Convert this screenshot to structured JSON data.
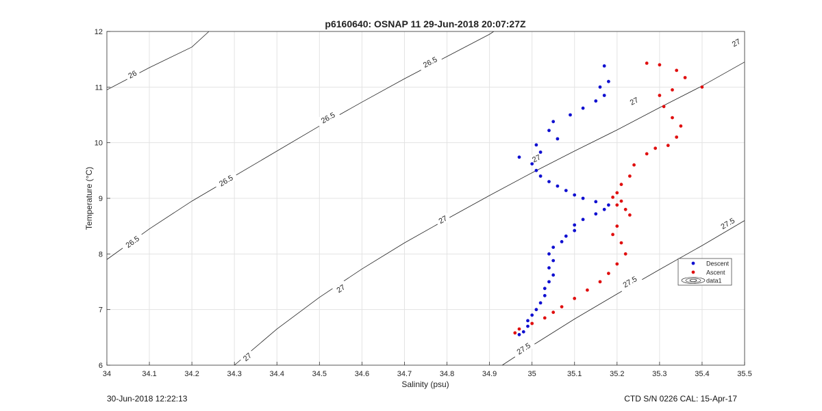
{
  "footer": {
    "left": "30-Jun-2018 12:22:13",
    "right": "CTD S/N 0226  CAL: 15-Apr-17"
  },
  "chart_data": {
    "type": "scatter",
    "title": "p6160640: OSNAP 11 29-Jun-2018 20:07:27Z",
    "xlabel": "Salinity (psu)",
    "ylabel": "Temperature (°C)",
    "xlim": [
      34,
      35.5
    ],
    "ylim": [
      6,
      12
    ],
    "x_ticks": [
      "34",
      "34.1",
      "34.2",
      "34.3",
      "34.4",
      "34.5",
      "34.6",
      "34.7",
      "34.8",
      "34.9",
      "35",
      "35.1",
      "35.2",
      "35.3",
      "35.4",
      "35.5"
    ],
    "y_ticks": [
      "6",
      "7",
      "8",
      "9",
      "10",
      "11",
      "12"
    ],
    "grid": true,
    "legend_position": "right",
    "legend": [
      {
        "label": "Descent",
        "kind": "marker",
        "color": "#1010d0"
      },
      {
        "label": "Ascent",
        "kind": "marker",
        "color": "#e01010"
      },
      {
        "label": "data1",
        "kind": "contour",
        "color": "#000000"
      }
    ],
    "contours": [
      {
        "level": "26",
        "points": [
          [
            34.0,
            10.95
          ],
          [
            34.1,
            11.35
          ],
          [
            34.2,
            11.72
          ],
          [
            34.24,
            12.0
          ]
        ],
        "labels": [
          [
            34.06,
            11.23
          ]
        ]
      },
      {
        "level": "26.5",
        "points": [
          [
            34.0,
            7.9
          ],
          [
            34.1,
            8.45
          ],
          [
            34.2,
            8.95
          ],
          [
            34.3,
            9.4
          ],
          [
            34.4,
            9.85
          ],
          [
            34.5,
            10.3
          ],
          [
            34.6,
            10.73
          ],
          [
            34.7,
            11.15
          ],
          [
            34.8,
            11.55
          ],
          [
            34.9,
            11.95
          ],
          [
            34.91,
            12.0
          ]
        ],
        "labels": [
          [
            34.06,
            8.22
          ],
          [
            34.28,
            9.32
          ],
          [
            34.52,
            10.45
          ],
          [
            34.76,
            11.45
          ]
        ]
      },
      {
        "level": "27",
        "points": [
          [
            34.3,
            6.0
          ],
          [
            34.4,
            6.65
          ],
          [
            34.5,
            7.22
          ],
          [
            34.6,
            7.73
          ],
          [
            34.7,
            8.2
          ],
          [
            34.8,
            8.63
          ],
          [
            34.9,
            9.05
          ],
          [
            35.0,
            9.46
          ],
          [
            35.1,
            9.85
          ],
          [
            35.2,
            10.23
          ],
          [
            35.3,
            10.63
          ],
          [
            35.4,
            11.02
          ],
          [
            35.5,
            11.45
          ]
        ],
        "labels": [
          [
            34.33,
            6.15
          ],
          [
            34.55,
            7.38
          ],
          [
            34.79,
            8.62
          ],
          [
            35.01,
            9.72
          ],
          [
            35.24,
            10.75
          ],
          [
            35.48,
            11.8
          ]
        ]
      },
      {
        "level": "27.5",
        "points": [
          [
            34.93,
            6.0
          ],
          [
            35.0,
            6.35
          ],
          [
            35.1,
            6.83
          ],
          [
            35.2,
            7.28
          ],
          [
            35.3,
            7.72
          ],
          [
            35.4,
            8.15
          ],
          [
            35.5,
            8.6
          ]
        ],
        "labels": [
          [
            34.98,
            6.3
          ],
          [
            35.23,
            7.5
          ],
          [
            35.46,
            8.55
          ]
        ]
      }
    ],
    "series": [
      {
        "name": "Descent",
        "color": "#1010d0",
        "points": [
          [
            35.17,
            11.38
          ],
          [
            35.18,
            11.1
          ],
          [
            35.16,
            11.0
          ],
          [
            35.17,
            10.85
          ],
          [
            35.15,
            10.75
          ],
          [
            35.12,
            10.62
          ],
          [
            35.09,
            10.5
          ],
          [
            35.05,
            10.38
          ],
          [
            35.04,
            10.22
          ],
          [
            35.06,
            10.07
          ],
          [
            35.01,
            9.96
          ],
          [
            35.02,
            9.83
          ],
          [
            34.97,
            9.74
          ],
          [
            35.0,
            9.62
          ],
          [
            35.01,
            9.5
          ],
          [
            35.02,
            9.4
          ],
          [
            35.04,
            9.3
          ],
          [
            35.06,
            9.22
          ],
          [
            35.08,
            9.14
          ],
          [
            35.1,
            9.06
          ],
          [
            35.12,
            9.0
          ],
          [
            35.15,
            8.94
          ],
          [
            35.18,
            8.88
          ],
          [
            35.17,
            8.8
          ],
          [
            35.15,
            8.72
          ],
          [
            35.12,
            8.62
          ],
          [
            35.1,
            8.52
          ],
          [
            35.1,
            8.42
          ],
          [
            35.08,
            8.32
          ],
          [
            35.07,
            8.22
          ],
          [
            35.05,
            8.12
          ],
          [
            35.04,
            8.0
          ],
          [
            35.05,
            7.88
          ],
          [
            35.04,
            7.75
          ],
          [
            35.05,
            7.62
          ],
          [
            35.04,
            7.5
          ],
          [
            35.03,
            7.38
          ],
          [
            35.03,
            7.25
          ],
          [
            35.02,
            7.12
          ],
          [
            35.01,
            7.0
          ],
          [
            35.0,
            6.9
          ],
          [
            34.99,
            6.8
          ],
          [
            34.99,
            6.7
          ],
          [
            34.98,
            6.6
          ],
          [
            34.97,
            6.55
          ]
        ]
      },
      {
        "name": "Ascent",
        "color": "#e01010",
        "points": [
          [
            35.27,
            11.43
          ],
          [
            35.3,
            11.4
          ],
          [
            35.34,
            11.3
          ],
          [
            35.36,
            11.17
          ],
          [
            35.4,
            11.0
          ],
          [
            35.33,
            10.95
          ],
          [
            35.3,
            10.85
          ],
          [
            35.31,
            10.65
          ],
          [
            35.33,
            10.45
          ],
          [
            35.35,
            10.3
          ],
          [
            35.34,
            10.1
          ],
          [
            35.32,
            9.95
          ],
          [
            35.29,
            9.9
          ],
          [
            35.27,
            9.8
          ],
          [
            35.24,
            9.6
          ],
          [
            35.23,
            9.4
          ],
          [
            35.21,
            9.25
          ],
          [
            35.2,
            9.1
          ],
          [
            35.19,
            9.02
          ],
          [
            35.21,
            8.95
          ],
          [
            35.2,
            8.88
          ],
          [
            35.22,
            8.8
          ],
          [
            35.23,
            8.7
          ],
          [
            35.2,
            8.5
          ],
          [
            35.19,
            8.35
          ],
          [
            35.21,
            8.2
          ],
          [
            35.22,
            8.0
          ],
          [
            35.2,
            7.82
          ],
          [
            35.18,
            7.65
          ],
          [
            35.16,
            7.5
          ],
          [
            35.13,
            7.35
          ],
          [
            35.1,
            7.2
          ],
          [
            35.07,
            7.05
          ],
          [
            35.05,
            6.95
          ],
          [
            35.03,
            6.85
          ],
          [
            35.0,
            6.75
          ],
          [
            34.97,
            6.65
          ],
          [
            34.96,
            6.58
          ]
        ]
      }
    ]
  }
}
